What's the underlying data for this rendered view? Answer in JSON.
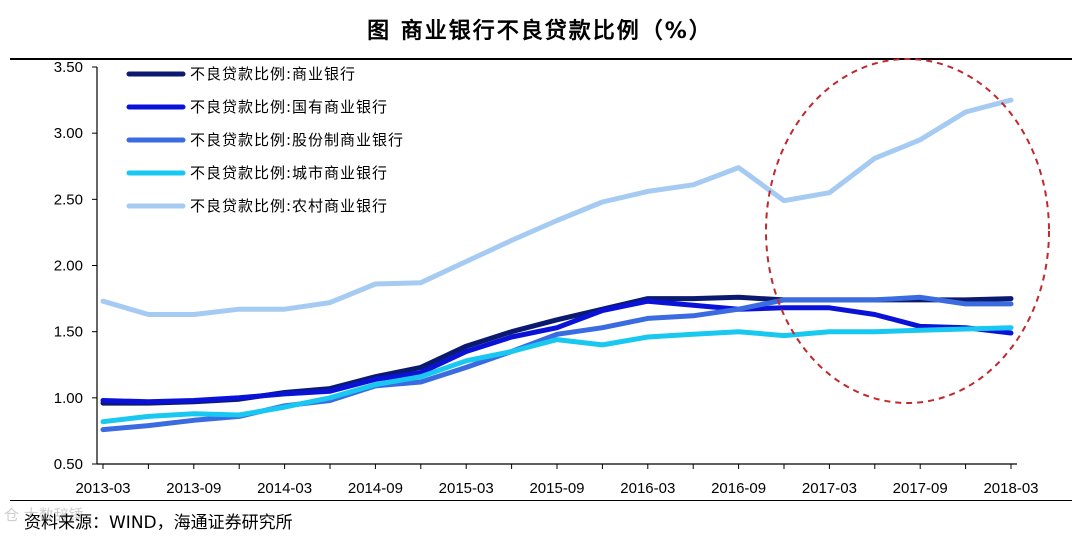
{
  "title": "图  商业银行不良贷款比例（%）",
  "source": "资料来源：WIND，海通证券研究所",
  "watermark": "仓 大数辞锤",
  "chart_data": {
    "type": "line",
    "title": "图  商业银行不良贷款比例（%）",
    "xlabel": "",
    "ylabel": "",
    "ylim": [
      0.5,
      3.5
    ],
    "yticks": [
      "0.50",
      "1.00",
      "1.50",
      "2.00",
      "2.50",
      "3.00",
      "3.50"
    ],
    "x": [
      "2013-03",
      "2013-06",
      "2013-09",
      "2013-12",
      "2014-03",
      "2014-06",
      "2014-09",
      "2014-12",
      "2015-03",
      "2015-06",
      "2015-09",
      "2015-12",
      "2016-03",
      "2016-06",
      "2016-09",
      "2016-12",
      "2017-03",
      "2017-06",
      "2017-09",
      "2017-12",
      "2018-03"
    ],
    "xtick_labels": [
      "2013-03",
      "2013-09",
      "2014-03",
      "2014-09",
      "2015-03",
      "2015-09",
      "2016-03",
      "2016-09",
      "2017-03",
      "2017-09",
      "2018-03"
    ],
    "legend_position": "top-left",
    "series": [
      {
        "name": "不良贷款比例:商业银行",
        "color": "#0a1a6e",
        "values": [
          0.96,
          0.96,
          0.97,
          0.99,
          1.04,
          1.07,
          1.16,
          1.23,
          1.39,
          1.5,
          1.59,
          1.67,
          1.75,
          1.75,
          1.76,
          1.74,
          1.74,
          1.74,
          1.74,
          1.74,
          1.75
        ]
      },
      {
        "name": "不良贷款比例:国有商业银行",
        "color": "#0a12d8",
        "values": [
          0.98,
          0.97,
          0.98,
          1.0,
          1.03,
          1.05,
          1.14,
          1.19,
          1.35,
          1.46,
          1.53,
          1.66,
          1.73,
          1.7,
          1.67,
          1.68,
          1.68,
          1.63,
          1.54,
          1.53,
          1.49
        ]
      },
      {
        "name": "不良贷款比例:股份制商业银行",
        "color": "#3a6be0",
        "values": [
          0.76,
          0.79,
          0.83,
          0.86,
          0.94,
          0.98,
          1.09,
          1.12,
          1.23,
          1.35,
          1.48,
          1.53,
          1.6,
          1.62,
          1.67,
          1.74,
          1.74,
          1.74,
          1.76,
          1.71,
          1.71
        ]
      },
      {
        "name": "不良贷款比例:城市商业银行",
        "color": "#19c8f0",
        "values": [
          0.82,
          0.86,
          0.88,
          0.87,
          0.93,
          1.0,
          1.1,
          1.16,
          1.28,
          1.35,
          1.44,
          1.4,
          1.46,
          1.48,
          1.5,
          1.47,
          1.5,
          1.5,
          1.51,
          1.52,
          1.53
        ]
      },
      {
        "name": "不良贷款比例:农村商业银行",
        "color": "#a6cbf2",
        "values": [
          1.73,
          1.63,
          1.63,
          1.67,
          1.67,
          1.72,
          1.86,
          1.87,
          2.03,
          2.19,
          2.34,
          2.48,
          2.56,
          2.61,
          2.74,
          2.49,
          2.55,
          2.81,
          2.95,
          3.16,
          3.25
        ]
      }
    ],
    "annotation": {
      "shape": "dashed-ellipse",
      "color": "#c0282d",
      "covers": "2016-12 to 2018-03"
    }
  }
}
